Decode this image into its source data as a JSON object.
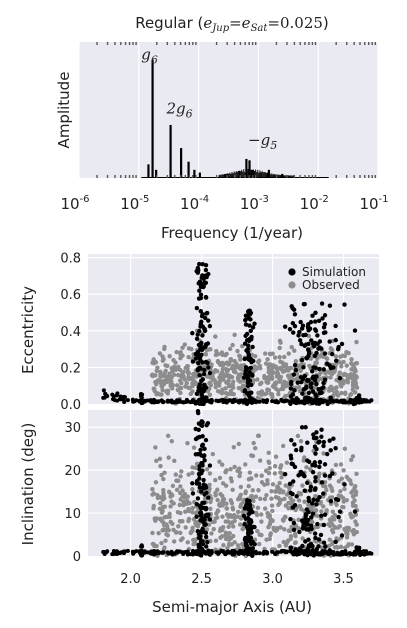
{
  "chart_data": [
    {
      "type": "line",
      "title_prefix": "Regular (",
      "title_math": "e_Jup = e_Sat = 0.025",
      "title_suffix": ")",
      "xlabel": "Frequency (1/year)",
      "ylabel": "Amplitude",
      "x_scale": "log",
      "xlim": [
        1e-06,
        0.1
      ],
      "x_tick_labels": [
        "10-6",
        "10-5",
        "10-4",
        "10-3",
        "10-2",
        "10-1"
      ],
      "grid": true,
      "peaks": [
        {
          "x": 1.7e-05,
          "y": 0.87
        },
        {
          "x": 1.45e-05,
          "y": 0.1
        },
        {
          "x": 1.95e-05,
          "y": 0.06
        },
        {
          "x": 3.4e-05,
          "y": 0.39
        },
        {
          "x": 5.1e-05,
          "y": 0.22
        },
        {
          "x": 6.8e-05,
          "y": 0.12
        },
        {
          "x": 8.5e-05,
          "y": 0.06
        },
        {
          "x": 0.000105,
          "y": 0.04
        },
        {
          "x": 0.0003,
          "y": 0.03
        },
        {
          "x": 0.00063,
          "y": 0.14
        },
        {
          "x": 0.00071,
          "y": 0.13
        },
        {
          "x": 0.00078,
          "y": 0.06
        },
        {
          "x": 0.0015,
          "y": 0.06
        },
        {
          "x": 0.0025,
          "y": 0.03
        }
      ],
      "annotations": [
        {
          "text": "g6",
          "x": 1.7e-05,
          "y": 0.9
        },
        {
          "text": "2g6",
          "x": 3.4e-05,
          "y": 0.43
        },
        {
          "text": "−g5",
          "x": 0.0008,
          "y": 0.2
        }
      ]
    },
    {
      "type": "scatter",
      "ylabel": "Eccentricity",
      "xlim": [
        1.7,
        3.75
      ],
      "ylim": [
        0,
        0.82
      ],
      "y_ticks": [
        "0.0",
        "0.2",
        "0.4",
        "0.6",
        "0.8"
      ],
      "grid": true,
      "legend_placement": "top-right",
      "series": [
        {
          "name": "Simulation",
          "color": "#000000"
        },
        {
          "name": "Observed",
          "color": "#8c8c8c"
        }
      ]
    },
    {
      "type": "scatter",
      "xlabel": "Semi-major Axis (AU)",
      "ylabel": "Inclination (deg)",
      "xlim": [
        1.7,
        3.75
      ],
      "ylim": [
        0,
        34
      ],
      "x_ticks": [
        "2.0",
        "2.5",
        "3.0",
        "3.5"
      ],
      "y_ticks": [
        "0",
        "10",
        "20",
        "30"
      ],
      "grid": true
    }
  ]
}
